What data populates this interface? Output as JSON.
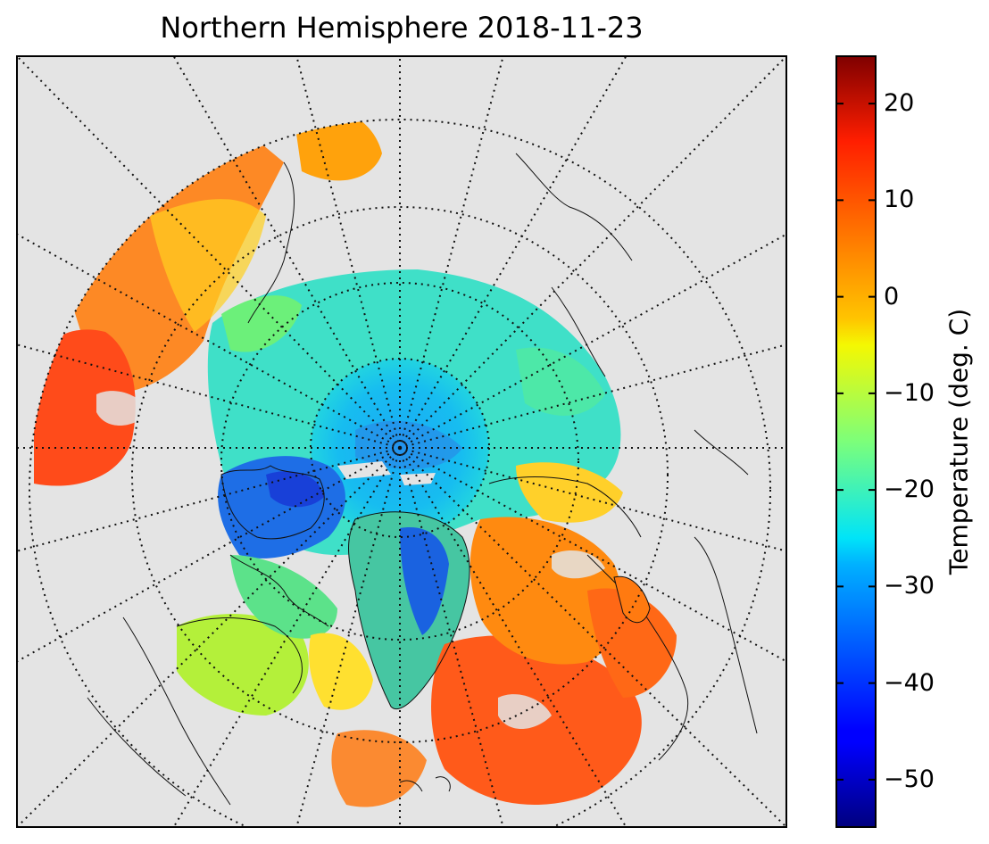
{
  "title": "Northern Hemisphere 2018-11-23",
  "colorbar": {
    "label": "Temperature (deg. C)",
    "min": -55,
    "max": 25,
    "ticks": [
      {
        "value": 20,
        "label": "20"
      },
      {
        "value": 10,
        "label": "10"
      },
      {
        "value": 0,
        "label": "0"
      },
      {
        "value": -10,
        "label": "−10"
      },
      {
        "value": -20,
        "label": "−20"
      },
      {
        "value": -30,
        "label": "−30"
      },
      {
        "value": -40,
        "label": "−40"
      },
      {
        "value": -50,
        "label": "−50"
      }
    ],
    "colormap": "jet"
  },
  "map": {
    "projection": "north polar stereographic",
    "background_color": "#e4e4e4",
    "graticule_style": "dotted",
    "colors": {
      "arctic_ocean": "#3fe0c8",
      "north_pole": "#18b8f2",
      "canadian_archipelago": "#1e6ee6",
      "greenland": "#46c6a2",
      "atlantic": "#ff5a1a",
      "pacific": "#ff6a14",
      "transition": "#ffb000"
    }
  }
}
